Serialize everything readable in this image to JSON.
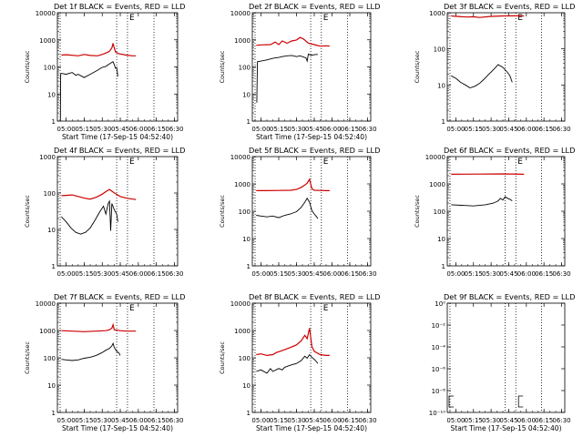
{
  "chart_data": [
    {
      "type": "line",
      "title": "Det 1f BLACK = Events, RED = LLD",
      "xlabel": "Start Time (17-Sep-15 04:52:40)",
      "ylabel": "Counts/sec",
      "xticks": [
        "05:00",
        "05:15",
        "05:30",
        "05:45",
        "06:00",
        "06:15",
        "06:30"
      ],
      "yticks": [
        "1",
        "10",
        "100",
        "1000",
        "10000"
      ],
      "ylim": [
        1,
        13000
      ],
      "yscale": "log",
      "xlim_minutes": [
        292.7,
        392.7
      ],
      "vlines_minutes": [
        295,
        342,
        351,
        373
      ],
      "top_marker": "E",
      "series": [
        {
          "color": "#cc0000",
          "x": [
            296,
            300,
            310,
            315,
            320,
            326,
            330,
            334,
            336,
            338,
            339,
            340,
            341,
            344,
            350,
            355,
            358
          ],
          "values": [
            320,
            330,
            300,
            340,
            310,
            300,
            340,
            400,
            450,
            600,
            900,
            600,
            420,
            360,
            320,
            300,
            300
          ]
        },
        {
          "color": "#000000",
          "x": [
            295.2,
            295.4,
            296,
            300,
            305,
            308,
            310,
            315,
            320,
            325,
            330,
            333,
            336,
            338,
            339,
            340,
            341,
            342,
            343
          ],
          "values": [
            1,
            60,
            65,
            60,
            70,
            55,
            60,
            45,
            60,
            80,
            110,
            120,
            150,
            170,
            180,
            140,
            100,
            110,
            50
          ]
        }
      ]
    },
    {
      "type": "line",
      "title": "Det 2f BLACK = Events, RED = LLD",
      "xlabel": "Start Time (17-Sep-15 04:52:40)",
      "ylabel": "Counts/sec",
      "xticks": [
        "05:00",
        "05:15",
        "05:30",
        "05:45",
        "06:00",
        "06:15",
        "06:30"
      ],
      "yticks": [
        "1",
        "10",
        "100",
        "1000",
        "10000"
      ],
      "ylim": [
        1,
        13000
      ],
      "yscale": "log",
      "xlim_minutes": [
        292.7,
        392.7
      ],
      "vlines_minutes": [
        295,
        342,
        351,
        373
      ],
      "top_marker": "E",
      "series": [
        {
          "color": "#cc0000",
          "x": [
            296,
            300,
            308,
            312,
            315,
            318,
            322,
            326,
            330,
            333,
            336,
            340,
            345,
            350,
            355,
            358
          ],
          "values": [
            750,
            780,
            800,
            1000,
            800,
            1100,
            900,
            1100,
            1200,
            1500,
            1300,
            900,
            800,
            700,
            720,
            700
          ]
        },
        {
          "color": "#000000",
          "x": [
            296.5,
            297,
            300,
            305,
            310,
            315,
            318,
            322,
            326,
            330,
            333,
            336,
            338,
            339,
            340,
            342,
            343,
            345,
            347,
            348
          ],
          "values": [
            5,
            180,
            190,
            210,
            240,
            260,
            280,
            300,
            310,
            280,
            300,
            270,
            250,
            190,
            350,
            320,
            320,
            330,
            340,
            340
          ]
        }
      ]
    },
    {
      "type": "line",
      "title": "Det 3f BLACK = Events, RED = LLD",
      "xlabel": "",
      "ylabel": "Counts/sec",
      "xticks": [
        "05:00",
        "05:15",
        "05:30",
        "05:45",
        "06:00",
        "06:15",
        "06:30"
      ],
      "yticks": [
        "1",
        "10",
        "100",
        "1000"
      ],
      "ylim": [
        1,
        1300
      ],
      "yscale": "log",
      "xlim_minutes": [
        292.7,
        392.7
      ],
      "vlines_minutes": [
        295,
        342,
        351,
        373
      ],
      "top_marker": "E",
      "series": [
        {
          "color": "#cc0000",
          "x": [
            296,
            305,
            310,
            315,
            320,
            330,
            340,
            350,
            358
          ],
          "values": [
            1050,
            1000,
            980,
            1000,
            950,
            1020,
            1050,
            1060,
            1050
          ]
        },
        {
          "color": "#000000",
          "x": [
            296,
            300,
            304,
            308,
            312,
            316,
            320,
            324,
            328,
            332,
            336,
            340,
            344,
            346,
            348
          ],
          "values": [
            20,
            17,
            13,
            11,
            9,
            10,
            12,
            16,
            22,
            30,
            42,
            35,
            25,
            20,
            13
          ]
        }
      ]
    },
    {
      "type": "line",
      "title": "Det 4f BLACK = Events, RED = LLD",
      "xlabel": "",
      "ylabel": "Counts/sec",
      "xticks": [
        "05:00",
        "05:15",
        "05:30",
        "05:45",
        "06:00",
        "06:15",
        "06:30"
      ],
      "yticks": [
        "1",
        "10",
        "100",
        "1000"
      ],
      "ylim": [
        1,
        1300
      ],
      "yscale": "log",
      "xlim_minutes": [
        292.7,
        392.7
      ],
      "vlines_minutes": [
        295,
        342,
        351,
        373
      ],
      "top_marker": "E",
      "series": [
        {
          "color": "#cc0000",
          "x": [
            296,
            300,
            305,
            310,
            315,
            320,
            325,
            330,
            333,
            336,
            340,
            345,
            350,
            355,
            358
          ],
          "values": [
            100,
            102,
            105,
            95,
            85,
            80,
            90,
            110,
            130,
            150,
            120,
            95,
            85,
            80,
            78
          ]
        },
        {
          "color": "#000000",
          "x": [
            296,
            300,
            304,
            308,
            312,
            316,
            320,
            324,
            328,
            331,
            333,
            335,
            336,
            337,
            338,
            340,
            342,
            343
          ],
          "values": [
            25,
            18,
            12,
            9,
            8,
            9,
            12,
            20,
            35,
            50,
            30,
            60,
            70,
            10,
            60,
            40,
            30,
            18
          ]
        }
      ]
    },
    {
      "type": "line",
      "title": "Det 5f BLACK = Events, RED = LLD",
      "xlabel": "",
      "ylabel": "Counts/sec",
      "xticks": [
        "05:00",
        "05:15",
        "05:30",
        "05:45",
        "06:00",
        "06:15",
        "06:30"
      ],
      "yticks": [
        "1",
        "10",
        "100",
        "1000",
        "10000"
      ],
      "ylim": [
        1,
        13000
      ],
      "yscale": "log",
      "xlim_minutes": [
        292.7,
        392.7
      ],
      "vlines_minutes": [
        295,
        342,
        351,
        373
      ],
      "top_marker": "E",
      "series": [
        {
          "color": "#cc0000",
          "x": [
            296,
            305,
            315,
            325,
            330,
            334,
            337,
            339,
            341,
            343,
            345,
            350,
            355,
            358
          ],
          "values": [
            680,
            680,
            690,
            700,
            750,
            900,
            1100,
            1300,
            1800,
            800,
            700,
            690,
            680,
            680
          ]
        },
        {
          "color": "#000000",
          "x": [
            296,
            300,
            305,
            310,
            315,
            320,
            325,
            330,
            334,
            337,
            339,
            341,
            343,
            345,
            347,
            348
          ],
          "values": [
            80,
            75,
            70,
            75,
            65,
            80,
            90,
            110,
            160,
            250,
            350,
            250,
            120,
            90,
            70,
            60
          ]
        }
      ]
    },
    {
      "type": "line",
      "title": "Det 6f BLACK = Events, RED = LLD",
      "xlabel": "",
      "ylabel": "Counts/sec",
      "xticks": [
        "05:00",
        "05:15",
        "05:30",
        "05:45",
        "06:00",
        "06:15",
        "06:30"
      ],
      "yticks": [
        "1",
        "10",
        "100",
        "1000",
        "10000"
      ],
      "ylim": [
        1,
        13000
      ],
      "yscale": "log",
      "xlim_minutes": [
        292.7,
        392.7
      ],
      "vlines_minutes": [
        295,
        342,
        351,
        373
      ],
      "top_marker": "E",
      "series": [
        {
          "color": "#cc0000",
          "x": [
            296,
            320,
            340,
            358
          ],
          "values": [
            2800,
            2850,
            2900,
            2800
          ]
        },
        {
          "color": "#000000",
          "x": [
            296,
            305,
            315,
            325,
            332,
            336,
            338,
            340,
            342,
            344,
            346,
            348
          ],
          "values": [
            200,
            190,
            180,
            200,
            230,
            280,
            350,
            300,
            400,
            350,
            320,
            280
          ]
        }
      ]
    },
    {
      "type": "line",
      "title": "Det 7f BLACK = Events, RED = LLD",
      "xlabel": "Start Time (17-Sep-15 04:52:40)",
      "ylabel": "Counts/sec",
      "xticks": [
        "05:00",
        "05:15",
        "05:30",
        "05:45",
        "06:00",
        "06:15",
        "06:30"
      ],
      "yticks": [
        "1",
        "10",
        "100",
        "1000",
        "10000"
      ],
      "ylim": [
        1,
        13000
      ],
      "yscale": "log",
      "xlim_minutes": [
        292.7,
        392.7
      ],
      "vlines_minutes": [
        295,
        342,
        351,
        373
      ],
      "top_marker": "E",
      "series": [
        {
          "color": "#cc0000",
          "x": [
            296,
            305,
            315,
            325,
            333,
            336,
            338,
            339,
            340,
            345,
            350,
            358
          ],
          "values": [
            1200,
            1150,
            1100,
            1150,
            1200,
            1300,
            1500,
            2000,
            1300,
            1200,
            1150,
            1150
          ]
        },
        {
          "color": "#000000",
          "x": [
            296,
            300,
            305,
            310,
            315,
            320,
            325,
            330,
            333,
            336,
            338,
            339,
            340,
            342,
            344,
            345
          ],
          "values": [
            100,
            95,
            90,
            95,
            110,
            120,
            140,
            180,
            220,
            260,
            320,
            400,
            280,
            200,
            170,
            140
          ]
        }
      ]
    },
    {
      "type": "line",
      "title": "Det 8f BLACK = Events, RED = LLD",
      "xlabel": "Start Time (17-Sep-15 04:52:40)",
      "ylabel": "Counts/sec",
      "xticks": [
        "05:00",
        "05:15",
        "05:30",
        "05:45",
        "06:00",
        "06:15",
        "06:30"
      ],
      "yticks": [
        "1",
        "10",
        "100",
        "1000",
        "10000"
      ],
      "ylim": [
        1,
        13000
      ],
      "yscale": "log",
      "xlim_minutes": [
        292.7,
        392.7
      ],
      "vlines_minutes": [
        295,
        342,
        351,
        373
      ],
      "top_marker": "E",
      "series": [
        {
          "color": "#cc0000",
          "x": [
            296,
            300,
            305,
            310,
            313,
            316,
            320,
            325,
            330,
            334,
            337,
            339,
            341,
            343,
            345,
            350,
            355,
            358
          ],
          "values": [
            150,
            160,
            140,
            150,
            180,
            200,
            230,
            280,
            350,
            500,
            800,
            600,
            1500,
            300,
            200,
            150,
            140,
            140
          ]
        },
        {
          "color": "#000000",
          "x": [
            296,
            300,
            305,
            308,
            310,
            315,
            318,
            320,
            325,
            330,
            334,
            337,
            339,
            341,
            343,
            345,
            347,
            348
          ],
          "values": [
            35,
            40,
            30,
            45,
            35,
            45,
            40,
            50,
            60,
            70,
            90,
            130,
            110,
            150,
            120,
            100,
            80,
            70
          ]
        }
      ]
    },
    {
      "type": "line",
      "title": "Det 9f BLACK = Events, RED = LLD",
      "xlabel": "Start Time (17-Sep-15 04:52:40)",
      "ylabel": "",
      "xticks": [
        "05:00",
        "05:15",
        "05:30",
        "05:45",
        "06:00",
        "06:15",
        "06:30"
      ],
      "yticks": [
        "10⁻¹⁰",
        "10⁻⁸",
        "10⁻⁶",
        "10⁻⁴",
        "10⁻²",
        "10⁰"
      ],
      "ylim": [
        1e-10,
        1
      ],
      "yscale": "log",
      "xlim_minutes": [
        292.7,
        392.7
      ],
      "vlines_minutes": [
        295,
        342,
        351,
        373
      ],
      "top_marker": "",
      "series": []
    }
  ]
}
